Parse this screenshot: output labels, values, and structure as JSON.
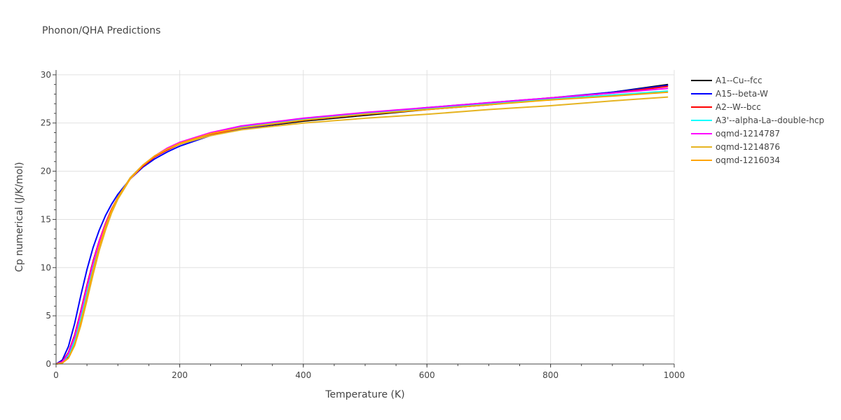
{
  "chart_data": {
    "type": "line",
    "title": "Phonon/QHA Predictions",
    "xlabel": "Temperature (K)",
    "ylabel": "Cp numerical (J/K/mol)",
    "xlim": [
      0,
      1000
    ],
    "ylim": [
      0,
      30.5
    ],
    "xticks": [
      0,
      200,
      400,
      600,
      800,
      1000
    ],
    "yticks": [
      0,
      5,
      10,
      15,
      20,
      25,
      30
    ],
    "grid": true,
    "legend_position": "top-right",
    "series": [
      {
        "name": "A1--Cu--fcc",
        "color": "#000000",
        "x": [
          0,
          10,
          20,
          30,
          40,
          50,
          60,
          70,
          80,
          90,
          100,
          120,
          140,
          160,
          180,
          200,
          250,
          300,
          400,
          500,
          600,
          700,
          800,
          900,
          990
        ],
        "y": [
          0,
          0.1,
          0.7,
          2.0,
          4.2,
          6.9,
          9.6,
          12.1,
          14.2,
          15.9,
          17.3,
          19.3,
          20.6,
          21.6,
          22.3,
          22.8,
          23.8,
          24.4,
          25.2,
          25.8,
          26.4,
          26.9,
          27.5,
          28.2,
          29.0
        ]
      },
      {
        "name": "A15--beta-W",
        "color": "#0000ff",
        "x": [
          0,
          10,
          20,
          30,
          40,
          50,
          60,
          70,
          80,
          90,
          100,
          120,
          140,
          160,
          180,
          200,
          250,
          300,
          400,
          500,
          600,
          700,
          800,
          900,
          990
        ],
        "y": [
          0,
          0.4,
          1.8,
          4.2,
          7.1,
          9.8,
          12.1,
          13.9,
          15.4,
          16.6,
          17.6,
          19.2,
          20.4,
          21.3,
          22.0,
          22.6,
          23.7,
          24.4,
          25.3,
          26.0,
          26.6,
          27.1,
          27.6,
          28.2,
          28.9
        ]
      },
      {
        "name": "A2--W--bcc",
        "color": "#ff0000",
        "x": [
          0,
          10,
          20,
          30,
          40,
          50,
          60,
          70,
          80,
          90,
          100,
          120,
          140,
          160,
          180,
          200,
          250,
          300,
          400,
          500,
          600,
          700,
          800,
          900,
          990
        ],
        "y": [
          0,
          0.25,
          1.2,
          3.0,
          5.5,
          8.2,
          10.7,
          12.8,
          14.6,
          16.1,
          17.3,
          19.2,
          20.5,
          21.5,
          22.2,
          22.8,
          23.8,
          24.5,
          25.3,
          25.9,
          26.5,
          27.0,
          27.6,
          28.1,
          28.8
        ]
      },
      {
        "name": "A3'--alpha-La--double-hcp",
        "color": "#00ffff",
        "x": [
          0,
          10,
          20,
          30,
          40,
          50,
          60,
          70,
          80,
          90,
          100,
          120,
          140,
          160,
          180,
          200,
          250,
          300,
          400,
          500,
          600,
          700,
          800,
          900,
          990
        ],
        "y": [
          0,
          0.15,
          0.9,
          2.4,
          4.7,
          7.4,
          10.0,
          12.4,
          14.4,
          16.0,
          17.3,
          19.3,
          20.6,
          21.6,
          22.3,
          22.9,
          23.9,
          24.6,
          25.4,
          26.0,
          26.5,
          27.0,
          27.5,
          27.9,
          28.3
        ]
      },
      {
        "name": "oqmd-1214787",
        "color": "#ff00ff",
        "x": [
          0,
          10,
          20,
          30,
          40,
          50,
          60,
          70,
          80,
          90,
          100,
          120,
          140,
          160,
          180,
          200,
          250,
          300,
          400,
          500,
          600,
          700,
          800,
          900,
          990
        ],
        "y": [
          0,
          0.2,
          1.1,
          2.8,
          5.3,
          8.0,
          10.5,
          12.7,
          14.5,
          16.0,
          17.3,
          19.2,
          20.6,
          21.6,
          22.4,
          23.0,
          24.0,
          24.7,
          25.5,
          26.1,
          26.6,
          27.1,
          27.6,
          28.1,
          28.6
        ]
      },
      {
        "name": "oqmd-1214876",
        "color": "#e6b422",
        "x": [
          0,
          10,
          20,
          30,
          40,
          50,
          60,
          70,
          80,
          90,
          100,
          120,
          140,
          160,
          180,
          200,
          250,
          300,
          400,
          500,
          600,
          700,
          800,
          900,
          990
        ],
        "y": [
          0,
          0.1,
          0.6,
          1.9,
          4.0,
          6.6,
          9.3,
          11.8,
          13.9,
          15.7,
          17.1,
          19.2,
          20.6,
          21.6,
          22.3,
          22.8,
          23.7,
          24.3,
          25.0,
          25.5,
          25.9,
          26.4,
          26.8,
          27.3,
          27.7
        ]
      },
      {
        "name": "oqmd-1216034",
        "color": "#ffa500",
        "x": [
          0,
          10,
          20,
          30,
          40,
          50,
          60,
          70,
          80,
          90,
          100,
          120,
          140,
          160,
          180,
          200,
          250,
          300,
          400,
          500,
          600,
          700,
          800,
          900,
          990
        ],
        "y": [
          0,
          0.1,
          0.6,
          2.0,
          4.3,
          7.0,
          9.7,
          12.2,
          14.3,
          16.0,
          17.3,
          19.3,
          20.6,
          21.6,
          22.3,
          22.9,
          23.9,
          24.5,
          25.3,
          25.9,
          26.4,
          26.9,
          27.4,
          27.8,
          28.2
        ]
      }
    ]
  }
}
